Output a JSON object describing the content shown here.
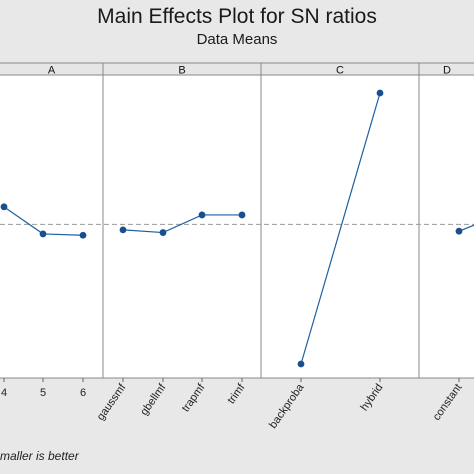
{
  "chart_data": {
    "type": "line",
    "title": "Main Effects Plot for SN ratios",
    "subtitle": "Data Means",
    "footnote": "maller is better",
    "panels": [
      {
        "label": "A",
        "categories": [
          "4",
          "5",
          "6"
        ],
        "values": [
          0.58,
          0.48,
          0.475
        ]
      },
      {
        "label": "B",
        "categories": [
          "gaussmf",
          "gbellmf",
          "trapmf",
          "trimf"
        ],
        "values": [
          0.495,
          0.485,
          0.55,
          0.55
        ]
      },
      {
        "label": "C",
        "categories": [
          "backproba",
          "hybrid"
        ],
        "values": [
          0.0,
          1.0
        ]
      },
      {
        "label": "D",
        "categories": [
          "constant"
        ],
        "values": [
          0.49
        ]
      }
    ],
    "mean_line": 0.515,
    "ylim": [
      0,
      1
    ],
    "colors": {
      "series": "#1f5fa0",
      "point": "#1a4f8f",
      "mean_line": "#9a9a9a",
      "panel_bg": "#ffffff",
      "strip_bg": "#e6e6e6"
    }
  }
}
